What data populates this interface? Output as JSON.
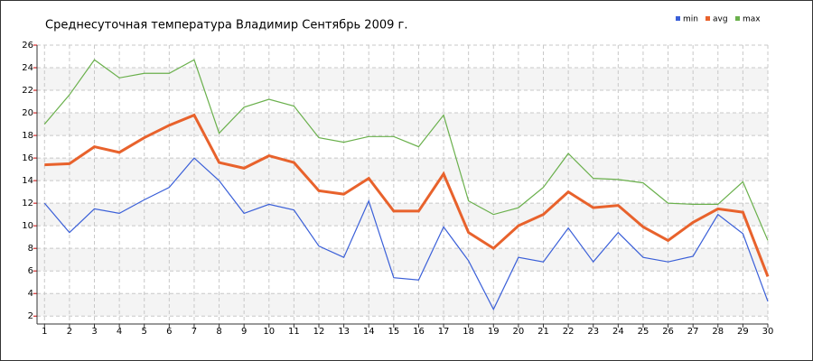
{
  "chart_data": {
    "type": "line",
    "title": "Среднесуточная температура Владимир  Сентябрь 2009 г.",
    "x": [
      1,
      2,
      3,
      4,
      5,
      6,
      7,
      8,
      9,
      10,
      11,
      12,
      13,
      14,
      15,
      16,
      17,
      18,
      19,
      20,
      21,
      22,
      23,
      24,
      25,
      26,
      27,
      28,
      29,
      30
    ],
    "xlim": [
      0.7,
      30
    ],
    "xticks": [
      1,
      2,
      3,
      4,
      5,
      6,
      7,
      8,
      9,
      10,
      11,
      12,
      13,
      14,
      15,
      16,
      17,
      18,
      19,
      20,
      21,
      22,
      23,
      24,
      25,
      26,
      27,
      28,
      29,
      30
    ],
    "ylim": [
      1.3,
      26
    ],
    "yticks": [
      2,
      4,
      6,
      8,
      10,
      12,
      14,
      16,
      18,
      20,
      22,
      24,
      26
    ],
    "grid": true,
    "legend": "top-right",
    "series": [
      {
        "name": "min",
        "color": "#3a5fd8",
        "values": [
          12.0,
          9.4,
          11.5,
          11.1,
          12.3,
          13.4,
          16.0,
          14.0,
          11.1,
          11.9,
          11.4,
          8.2,
          7.2,
          12.2,
          5.4,
          5.2,
          9.9,
          6.9,
          2.6,
          7.2,
          6.8,
          9.8,
          6.8,
          9.4,
          7.2,
          6.8,
          7.3,
          11.0,
          9.3,
          3.3
        ]
      },
      {
        "name": "avg",
        "color": "#e8622c",
        "values": [
          15.4,
          15.5,
          17.0,
          16.5,
          17.8,
          18.9,
          19.8,
          15.6,
          15.1,
          16.2,
          15.6,
          13.1,
          12.8,
          14.2,
          11.3,
          11.3,
          14.6,
          9.4,
          8.0,
          10.0,
          11.0,
          13.0,
          11.6,
          11.8,
          9.9,
          8.7,
          10.3,
          11.5,
          11.2,
          5.5
        ]
      },
      {
        "name": "max",
        "color": "#6ab04c",
        "values": [
          19.0,
          21.6,
          24.7,
          23.1,
          23.5,
          23.5,
          24.7,
          18.2,
          20.5,
          21.2,
          20.6,
          17.8,
          17.4,
          17.9,
          17.9,
          17.0,
          19.8,
          12.2,
          11.0,
          11.6,
          13.4,
          16.4,
          14.2,
          14.1,
          13.8,
          12.0,
          11.9,
          11.9,
          13.9,
          8.7
        ]
      }
    ]
  }
}
